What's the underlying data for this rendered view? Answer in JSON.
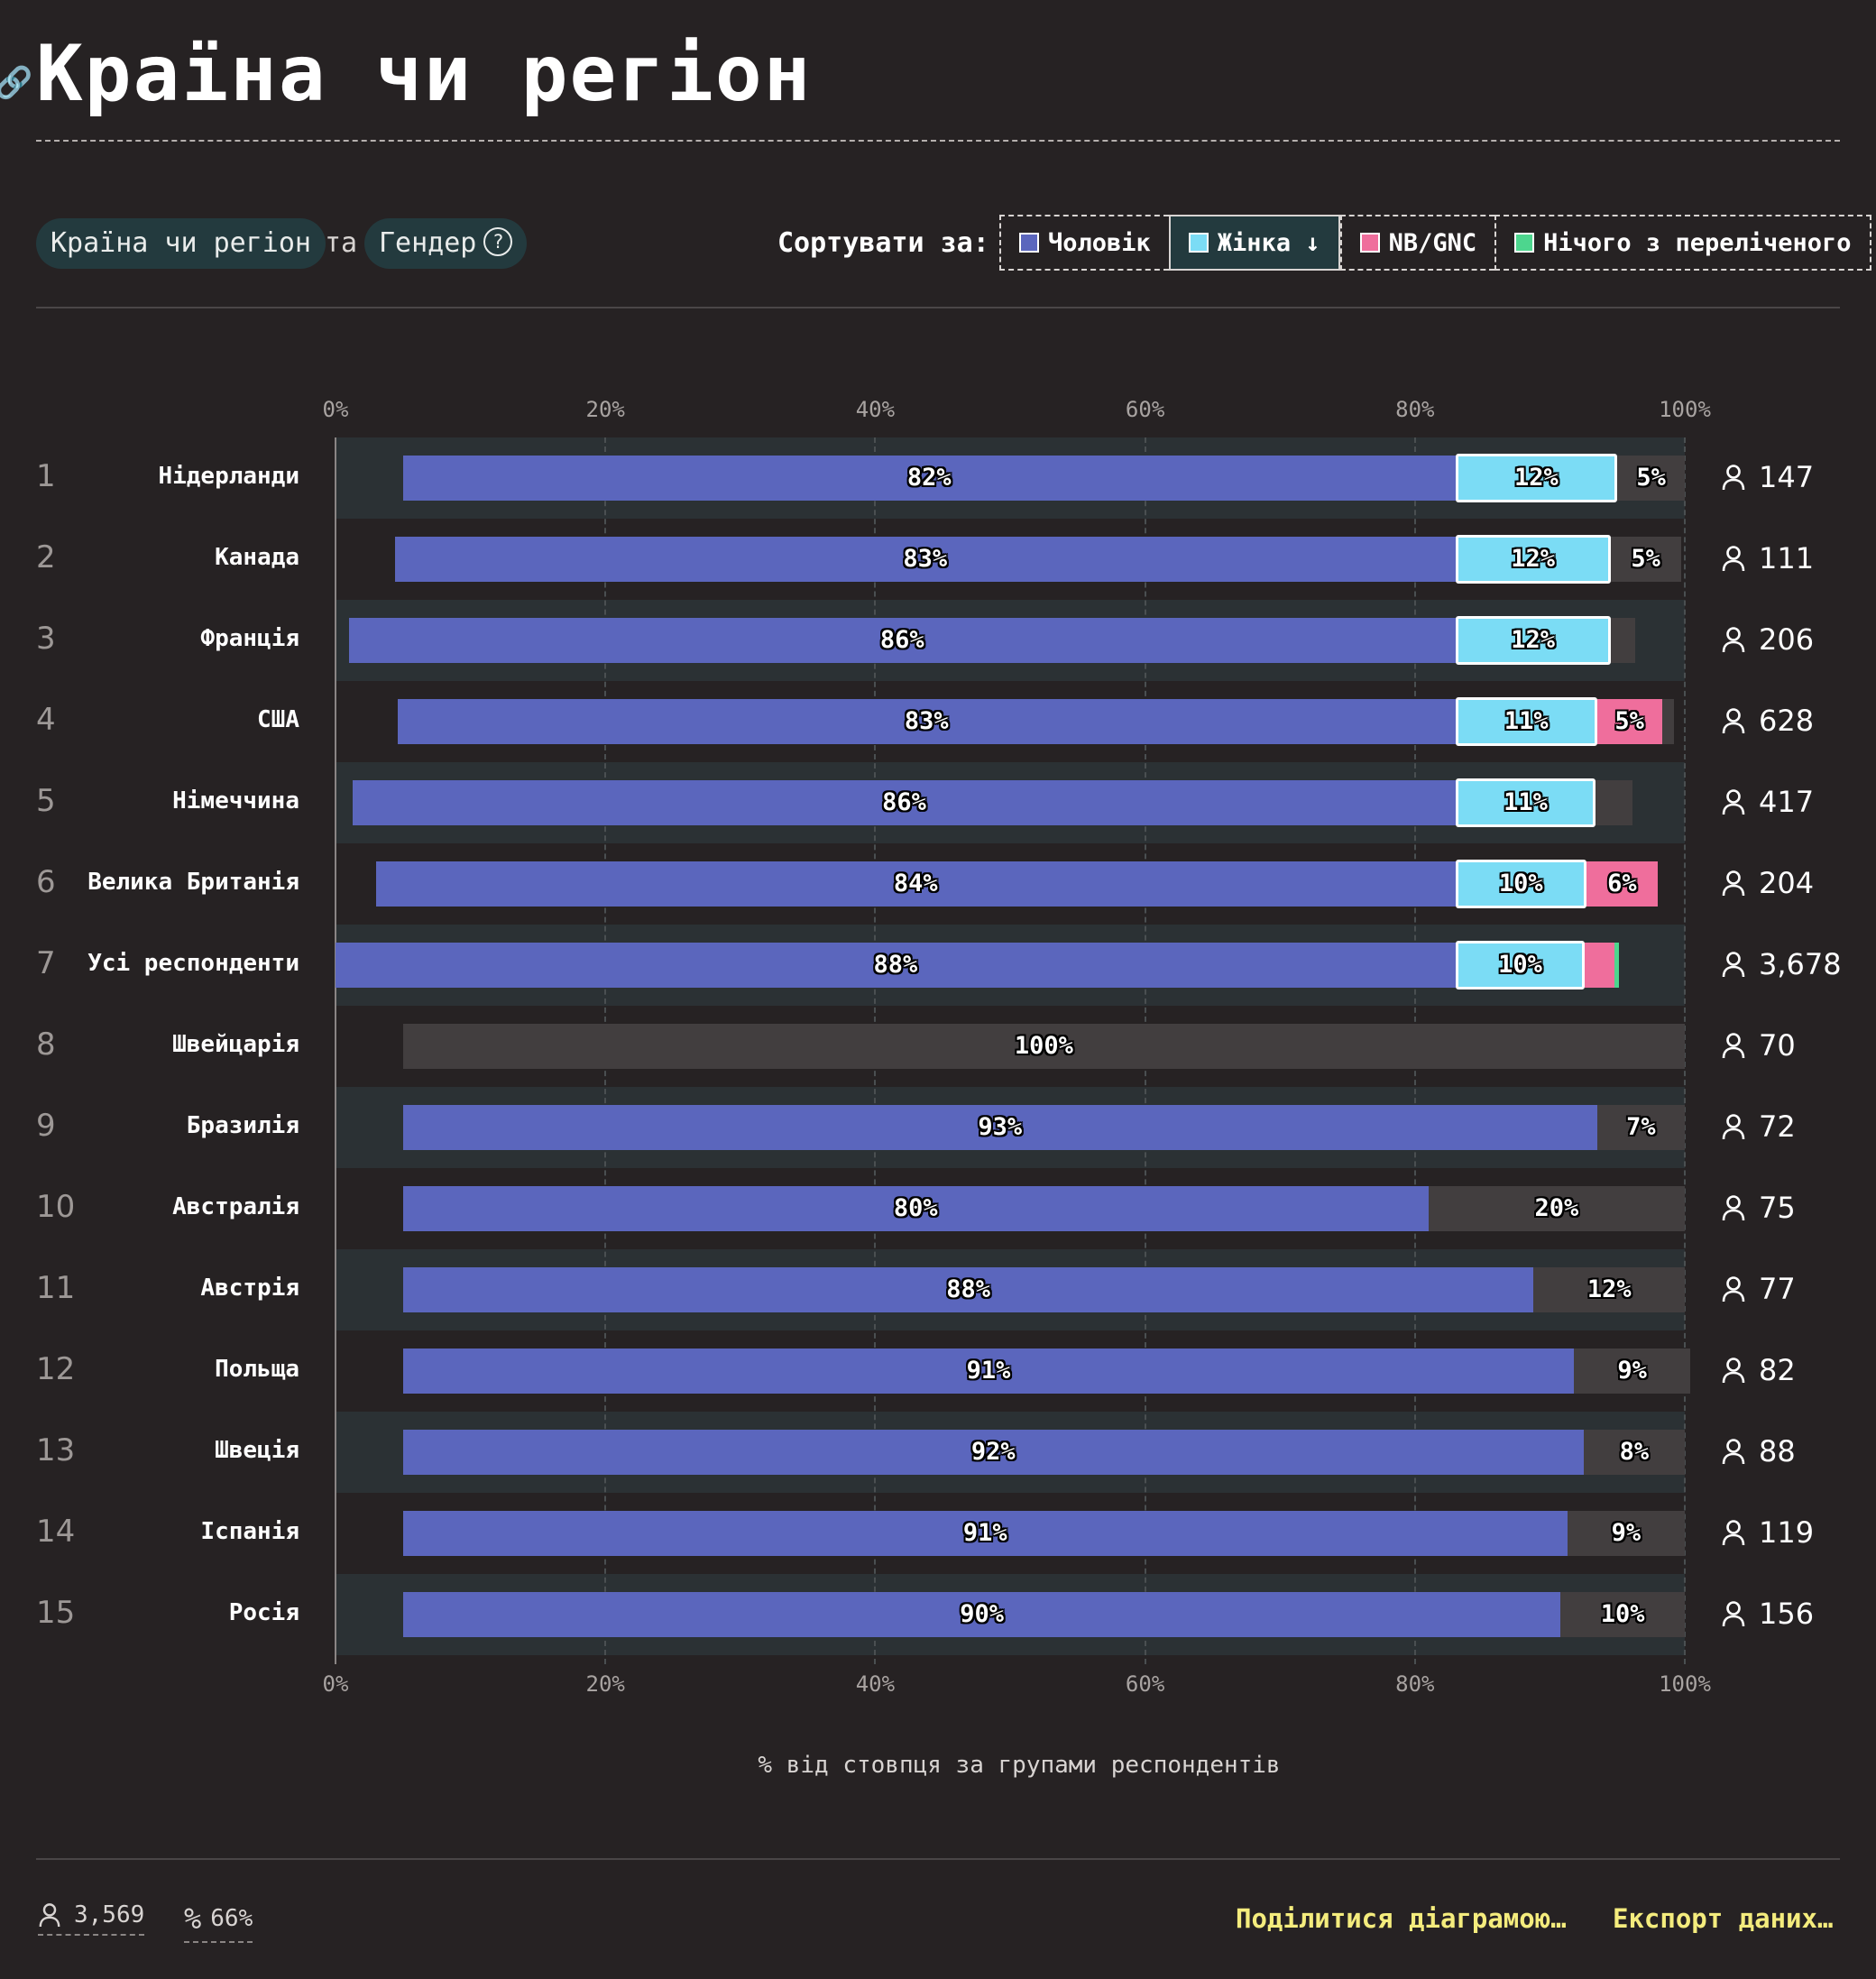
{
  "title": "Країна чи регіон",
  "filters": {
    "field": "Країна чи регіон",
    "joiner": "та",
    "by": "Гендер"
  },
  "sort": {
    "label": "Сортувати за:",
    "options": [
      {
        "label": "Чоловік",
        "color": "#5b66bd",
        "active": false
      },
      {
        "label": "Жінка ↓",
        "color": "#7bdcf5",
        "active": true
      },
      {
        "label": "NB/GNC",
        "color": "#ef6e9c",
        "active": false
      },
      {
        "label": "Нічого з переліченого",
        "color": "#4dd68e",
        "active": false
      }
    ]
  },
  "chart_data": {
    "type": "bar",
    "orientation": "horizontal",
    "stacked": true,
    "xlabel": "% від стовпця за групами респондентів",
    "xlim": [
      0,
      100
    ],
    "x_ticks": [
      "0%",
      "20%",
      "40%",
      "60%",
      "80%",
      "100%"
    ],
    "series": [
      {
        "name": "Чоловік",
        "color": "#5b66bd"
      },
      {
        "name": "Жінка",
        "color": "#7bdcf5"
      },
      {
        "name": "NB/GNC",
        "color": "#ef6e9c"
      },
      {
        "name": "Нічого з переліченого",
        "color": "#4dd68e"
      }
    ],
    "rows": [
      {
        "rank": "1",
        "name": "Нідерланди",
        "count": "147",
        "segments": [
          {
            "series": "Чоловік",
            "start": 5,
            "end": 83,
            "label": "82%"
          },
          {
            "series": "Жінка",
            "start": 83,
            "end": 95,
            "label": "12%"
          },
          {
            "series": "other",
            "start": 95,
            "end": 100,
            "label": "5%"
          }
        ]
      },
      {
        "rank": "2",
        "name": "Канада",
        "count": "111",
        "segments": [
          {
            "series": "Чоловік",
            "start": 4.4,
            "end": 83,
            "label": "83%"
          },
          {
            "series": "Жінка",
            "start": 83,
            "end": 94.5,
            "label": "12%"
          },
          {
            "series": "other",
            "start": 94.5,
            "end": 99.7,
            "label": "5%"
          }
        ]
      },
      {
        "rank": "3",
        "name": "Франція",
        "count": "206",
        "segments": [
          {
            "series": "Чоловік",
            "start": 1,
            "end": 83,
            "label": "86%"
          },
          {
            "series": "Жінка",
            "start": 83,
            "end": 94.5,
            "label": "12%"
          },
          {
            "series": "other",
            "start": 94.5,
            "end": 96.3,
            "label": ""
          }
        ]
      },
      {
        "rank": "4",
        "name": "США",
        "count": "628",
        "segments": [
          {
            "series": "Чоловік",
            "start": 4.6,
            "end": 83,
            "label": "83%"
          },
          {
            "series": "Жінка",
            "start": 83,
            "end": 93.5,
            "label": "11%"
          },
          {
            "series": "NB/GNC",
            "start": 93.5,
            "end": 98.3,
            "label": "5%"
          },
          {
            "series": "other",
            "start": 98.3,
            "end": 99.2,
            "label": ""
          }
        ]
      },
      {
        "rank": "5",
        "name": "Німеччина",
        "count": "417",
        "segments": [
          {
            "series": "Чоловік",
            "start": 1.3,
            "end": 83,
            "label": "86%"
          },
          {
            "series": "Жінка",
            "start": 83,
            "end": 93.4,
            "label": "11%"
          },
          {
            "series": "other",
            "start": 93.4,
            "end": 96.1,
            "label": ""
          }
        ]
      },
      {
        "rank": "6",
        "name": "Велика Британія",
        "count": "204",
        "segments": [
          {
            "series": "Чоловік",
            "start": 3,
            "end": 83,
            "label": "84%"
          },
          {
            "series": "Жінка",
            "start": 83,
            "end": 92.7,
            "label": "10%"
          },
          {
            "series": "NB/GNC",
            "start": 92.7,
            "end": 98,
            "label": "6%"
          }
        ]
      },
      {
        "rank": "7",
        "name": "Усі респонденти",
        "count": "3,678",
        "segments": [
          {
            "series": "Чоловік",
            "start": 0,
            "end": 83,
            "label": "88%"
          },
          {
            "series": "Жінка",
            "start": 83,
            "end": 92.6,
            "label": "10%"
          },
          {
            "series": "NB/GNC",
            "start": 92.6,
            "end": 94.8,
            "label": ""
          },
          {
            "series": "Нічого з переліченого",
            "start": 94.8,
            "end": 95.1,
            "label": ""
          }
        ]
      },
      {
        "rank": "8",
        "name": "Швейцарія",
        "count": "70",
        "segments": [
          {
            "series": "other",
            "start": 5,
            "end": 100,
            "label": "100%"
          }
        ]
      },
      {
        "rank": "9",
        "name": "Бразилія",
        "count": "72",
        "segments": [
          {
            "series": "Чоловік",
            "start": 5,
            "end": 93.5,
            "label": "93%"
          },
          {
            "series": "other",
            "start": 93.5,
            "end": 100,
            "label": "7%"
          }
        ]
      },
      {
        "rank": "10",
        "name": "Австралія",
        "count": "75",
        "segments": [
          {
            "series": "Чоловік",
            "start": 5,
            "end": 81,
            "label": "80%"
          },
          {
            "series": "other",
            "start": 81,
            "end": 100,
            "label": "20%"
          }
        ]
      },
      {
        "rank": "11",
        "name": "Австрія",
        "count": "77",
        "segments": [
          {
            "series": "Чоловік",
            "start": 5,
            "end": 88.8,
            "label": "88%"
          },
          {
            "series": "other",
            "start": 88.8,
            "end": 100,
            "label": "12%"
          }
        ]
      },
      {
        "rank": "12",
        "name": "Польща",
        "count": "82",
        "segments": [
          {
            "series": "Чоловік",
            "start": 5,
            "end": 91.8,
            "label": "91%"
          },
          {
            "series": "other",
            "start": 91.8,
            "end": 100.4,
            "label": "9%"
          }
        ]
      },
      {
        "rank": "13",
        "name": "Швеція",
        "count": "88",
        "segments": [
          {
            "series": "Чоловік",
            "start": 5,
            "end": 92.5,
            "label": "92%"
          },
          {
            "series": "other",
            "start": 92.5,
            "end": 100,
            "label": "8%"
          }
        ]
      },
      {
        "rank": "14",
        "name": "Іспанія",
        "count": "119",
        "segments": [
          {
            "series": "Чоловік",
            "start": 5,
            "end": 91.3,
            "label": "91%"
          },
          {
            "series": "other",
            "start": 91.3,
            "end": 100,
            "label": "9%"
          }
        ]
      },
      {
        "rank": "15",
        "name": "Росія",
        "count": "156",
        "segments": [
          {
            "series": "Чоловік",
            "start": 5,
            "end": 90.8,
            "label": "90%"
          },
          {
            "series": "other",
            "start": 90.8,
            "end": 100,
            "label": "10%"
          }
        ]
      }
    ]
  },
  "colors": {
    "other": "#423e3f",
    "band": "#2b3134",
    "background": "#262223",
    "link": "#f4ec7d"
  },
  "footer": {
    "respondents": "3,569",
    "percent": "66%",
    "share_label": "Поділитися діаграмою…",
    "export_label": "Експорт даних…"
  }
}
